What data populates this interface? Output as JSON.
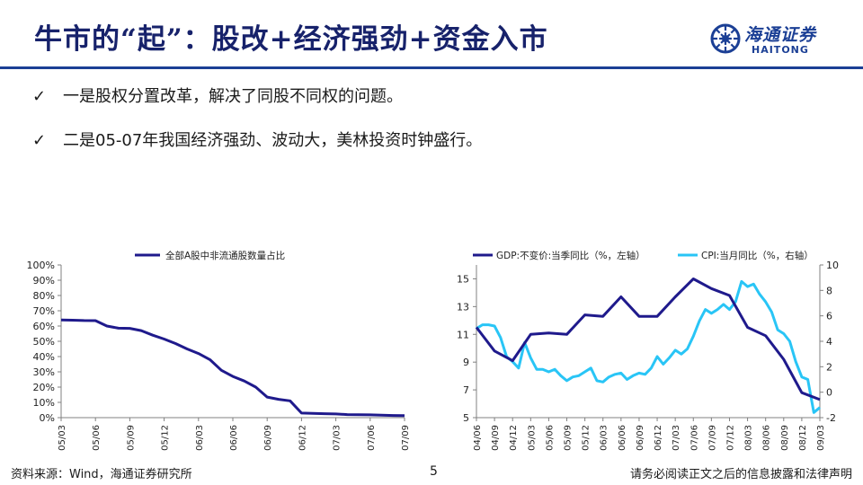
{
  "header": {
    "title": "牛市的“起”：股改+经济强劲+资金入市",
    "logo_cn": "海通证券",
    "logo_en": "HAITONG"
  },
  "bullets": [
    {
      "check": "✓",
      "text": "一是股权分置改革，解决了同股不同权的问题。"
    },
    {
      "check": "✓",
      "text": "二是05-07年我国经济强劲、波动大，美林投资时钟盛行。"
    }
  ],
  "footer": {
    "source": "资料来源：Wind，海通证券研究所",
    "page": "5",
    "disclaimer": "请务必阅读正文之后的信息披露和法律声明"
  },
  "colors": {
    "title": "#17226b",
    "brand": "#1b3f95",
    "navy_series": "#1f1a8c",
    "cyan_series": "#29c5f6"
  },
  "chart_data": [
    {
      "type": "line",
      "title": "",
      "legend": [
        "全部A股中非流通股数量占比"
      ],
      "legend_position": "top",
      "grid": false,
      "x_ticks": [
        "05/03",
        "05/06",
        "05/09",
        "05/12",
        "06/03",
        "06/06",
        "06/09",
        "06/12",
        "07/03",
        "07/06",
        "07/09"
      ],
      "y_ticks": [
        "0%",
        "10%",
        "20%",
        "30%",
        "40%",
        "50%",
        "60%",
        "70%",
        "80%",
        "90%",
        "100%"
      ],
      "ylim": [
        0,
        100
      ],
      "series": [
        {
          "name": "全部A股中非流通股数量占比",
          "color": "#1f1a8c",
          "x": [
            "05/03",
            "05/04",
            "05/05",
            "05/06",
            "05/07",
            "05/08",
            "05/09",
            "05/10",
            "05/11",
            "05/12",
            "06/01",
            "06/02",
            "06/03",
            "06/04",
            "06/05",
            "06/06",
            "06/07",
            "06/08",
            "06/09",
            "06/10",
            "06/11",
            "06/12",
            "07/01",
            "07/02",
            "07/03",
            "07/04",
            "07/05",
            "07/06",
            "07/07",
            "07/08",
            "07/09"
          ],
          "values": [
            64,
            63.8,
            63.6,
            63.5,
            60,
            58.6,
            58.5,
            57,
            54,
            51.5,
            48.5,
            45,
            42,
            38,
            31,
            27,
            24,
            20,
            13.5,
            12,
            11,
            3,
            2.8,
            2.6,
            2.4,
            2,
            1.9,
            1.8,
            1.6,
            1.4,
            1.3
          ]
        }
      ]
    },
    {
      "type": "line",
      "title": "",
      "legend": [
        "GDP:不变价:当季同比（%，左轴）",
        "CPI:当月同比（%，右轴）"
      ],
      "legend_position": "top",
      "grid": false,
      "x_ticks": [
        "04/06",
        "04/09",
        "04/12",
        "05/03",
        "05/06",
        "05/09",
        "05/12",
        "06/03",
        "06/06",
        "06/09",
        "06/12",
        "07/03",
        "07/06",
        "07/09",
        "07/12",
        "08/03",
        "08/06",
        "08/09",
        "08/12",
        "09/03"
      ],
      "y_left_ticks": [
        "5",
        "7",
        "9",
        "11",
        "13",
        "15"
      ],
      "ylim_left": [
        5,
        16
      ],
      "y_right_ticks": [
        "-2",
        "0",
        "2",
        "4",
        "6",
        "8",
        "10"
      ],
      "ylim_right": [
        -2,
        10
      ],
      "series": [
        {
          "name": "GDP:不变价:当季同比",
          "axis": "left",
          "color": "#1f1a8c",
          "x": [
            "04/06",
            "04/09",
            "04/12",
            "05/03",
            "05/06",
            "05/09",
            "05/12",
            "06/03",
            "06/06",
            "06/09",
            "06/12",
            "07/03",
            "07/06",
            "07/09",
            "07/12",
            "08/03",
            "08/06",
            "08/09",
            "08/12",
            "09/03"
          ],
          "values": [
            11.5,
            9.8,
            9.1,
            11.0,
            11.1,
            11.0,
            12.4,
            12.3,
            13.7,
            12.3,
            12.3,
            13.7,
            15.0,
            14.3,
            13.8,
            11.5,
            10.9,
            9.2,
            6.8,
            6.3
          ]
        },
        {
          "name": "CPI:当月同比",
          "axis": "right",
          "color": "#29c5f6",
          "x": [
            "04/06",
            "04/07",
            "04/08",
            "04/09",
            "04/10",
            "04/11",
            "04/12",
            "05/01",
            "05/02",
            "05/03",
            "05/04",
            "05/05",
            "05/06",
            "05/07",
            "05/08",
            "05/09",
            "05/10",
            "05/11",
            "05/12",
            "06/01",
            "06/02",
            "06/03",
            "06/04",
            "06/05",
            "06/06",
            "06/07",
            "06/08",
            "06/09",
            "06/10",
            "06/11",
            "06/12",
            "07/01",
            "07/02",
            "07/03",
            "07/04",
            "07/05",
            "07/06",
            "07/07",
            "07/08",
            "07/09",
            "07/10",
            "07/11",
            "07/12",
            "08/01",
            "08/02",
            "08/03",
            "08/04",
            "08/05",
            "08/06",
            "08/07",
            "08/08",
            "08/09",
            "08/10",
            "08/11",
            "08/12",
            "09/01",
            "09/02",
            "09/03"
          ],
          "values": [
            5.0,
            5.3,
            5.3,
            5.2,
            4.3,
            2.8,
            2.4,
            1.9,
            3.9,
            2.7,
            1.8,
            1.8,
            1.6,
            1.8,
            1.3,
            0.9,
            1.2,
            1.3,
            1.6,
            1.9,
            0.9,
            0.8,
            1.2,
            1.4,
            1.5,
            1.0,
            1.3,
            1.5,
            1.4,
            1.9,
            2.8,
            2.2,
            2.7,
            3.3,
            3.0,
            3.4,
            4.4,
            5.6,
            6.5,
            6.2,
            6.5,
            6.9,
            6.5,
            7.1,
            8.7,
            8.3,
            8.5,
            7.7,
            7.1,
            6.3,
            4.9,
            4.6,
            4.0,
            2.4,
            1.2,
            1.0,
            -1.6,
            -1.2
          ]
        }
      ]
    }
  ]
}
